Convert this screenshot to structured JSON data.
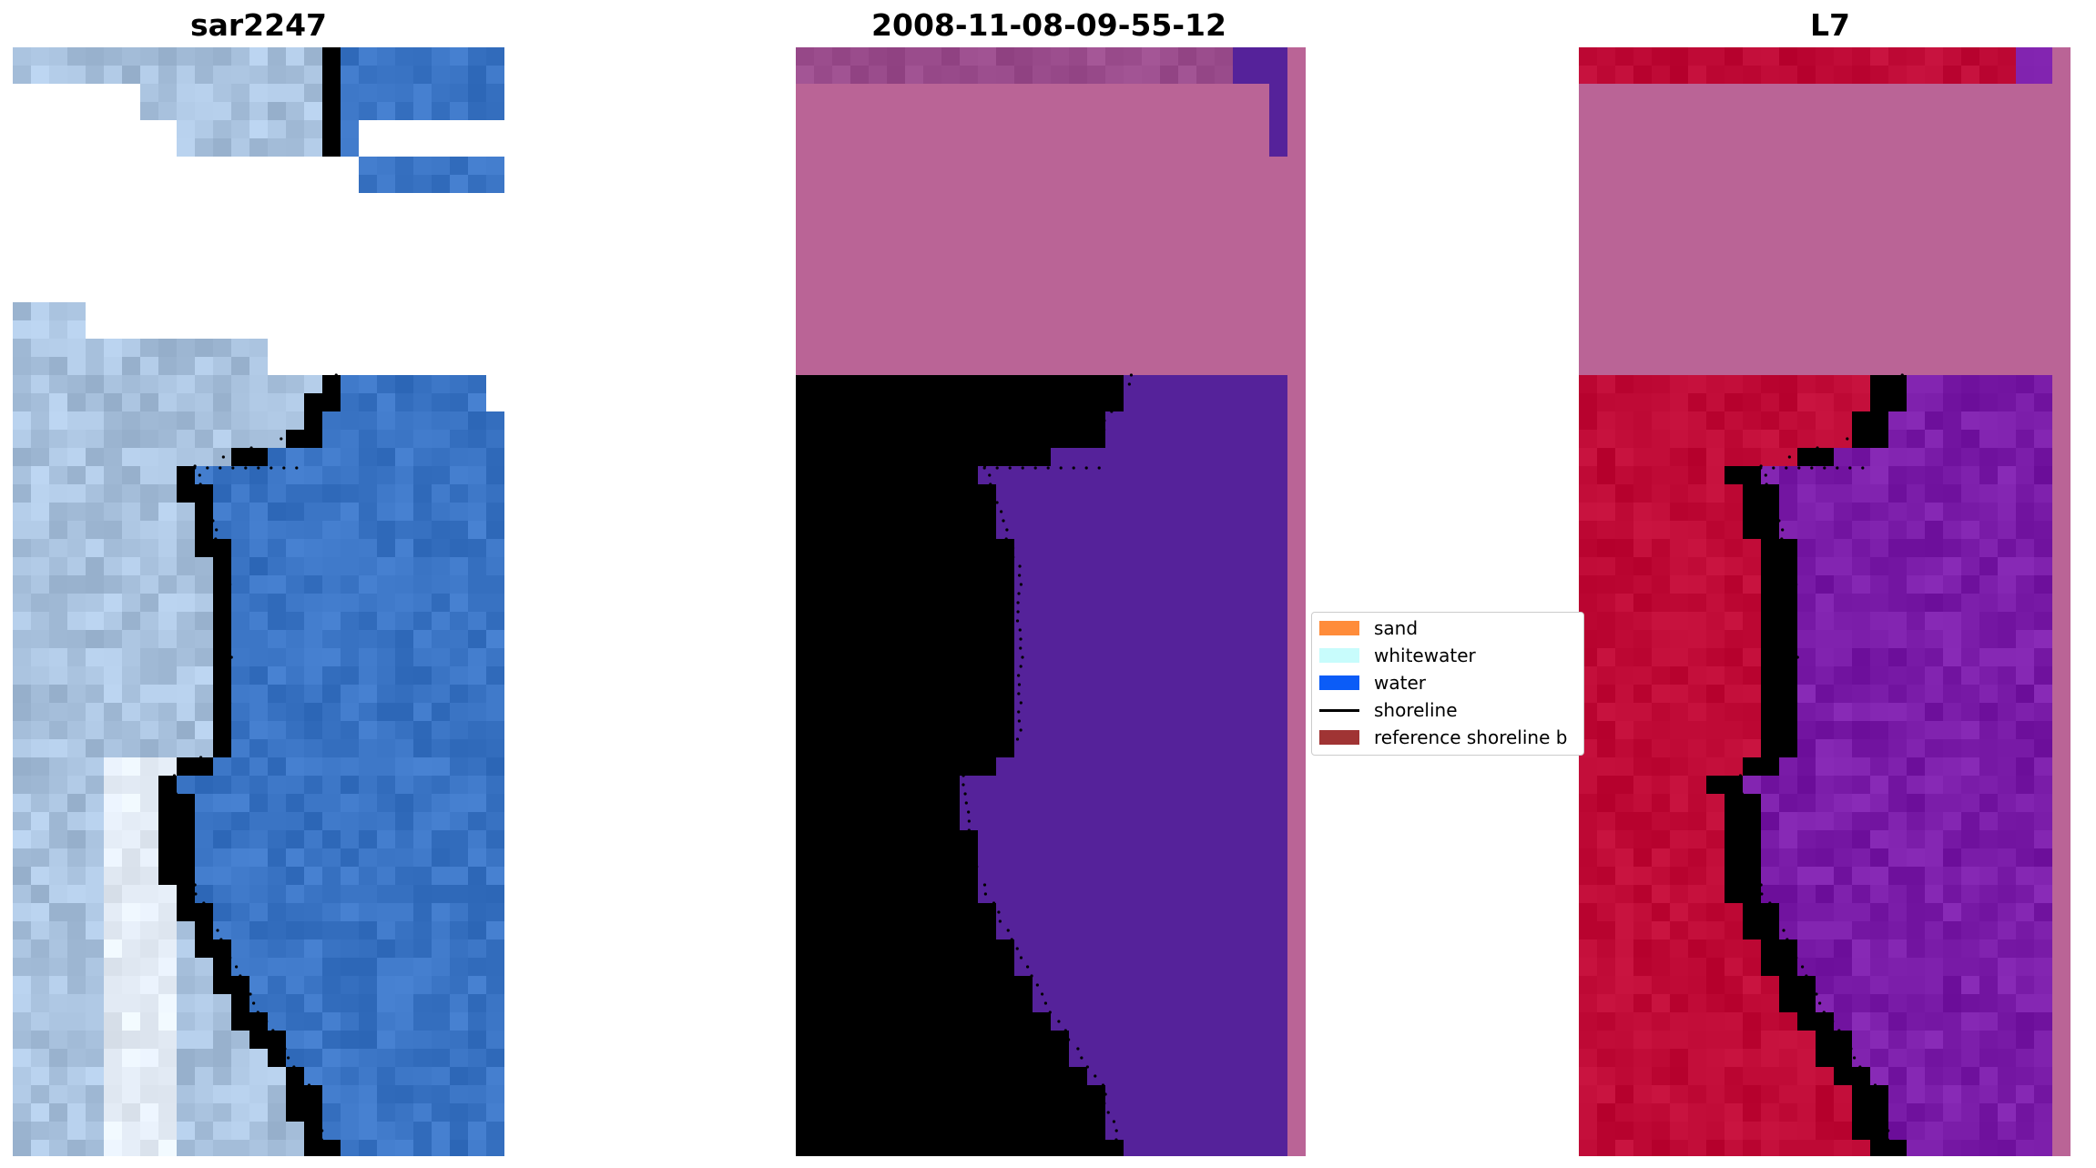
{
  "panels": [
    {
      "title": "sar2247"
    },
    {
      "title": "2008-11-08-09-55-12"
    },
    {
      "title": "L7"
    }
  ],
  "legend": {
    "items": [
      {
        "label": "sand",
        "color": "#ff8c3a",
        "kind": "patch"
      },
      {
        "label": "whitewater",
        "color": "#c8fcfc",
        "kind": "patch"
      },
      {
        "label": "water",
        "color": "#0b5cf7",
        "kind": "patch"
      },
      {
        "label": "shoreline",
        "color": "#000000",
        "kind": "line"
      },
      {
        "label": "reference shoreline b",
        "color": "#a03434",
        "kind": "patch"
      }
    ]
  },
  "colors": {
    "rgb_sand": "#a9c2de",
    "rgb_water": "#3a74c4",
    "rgb_whitewater": "#e4ecf6",
    "fc_land": "#9a4c8c",
    "fc_water": "#55229a",
    "fc_cloud": "#ba6496",
    "ndwi_land": "#bf0a36",
    "ndwi_water": "#7a1ca8",
    "ndwi_cloud": "#ba6496",
    "transition": "#d2789c"
  }
}
